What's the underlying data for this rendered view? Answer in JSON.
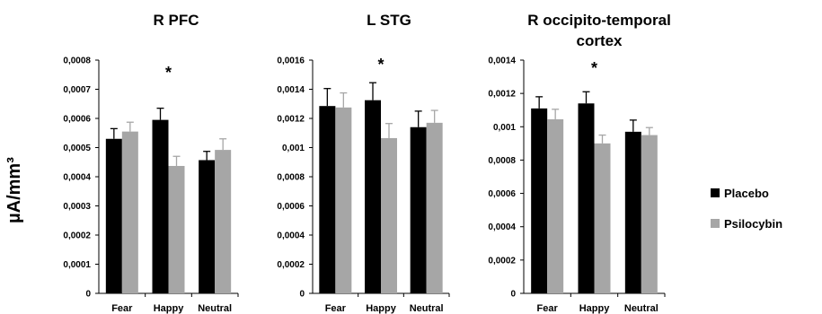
{
  "y_axis_label": "µA/mm³",
  "legend": [
    {
      "name": "Placebo",
      "color": "#000000"
    },
    {
      "name": "Psilocybin",
      "color": "#a6a6a6"
    }
  ],
  "chart_data": [
    {
      "type": "bar",
      "title": [
        "R PFC"
      ],
      "categories": [
        "Fear",
        "Happy",
        "Neutral"
      ],
      "ylim": [
        0,
        0.0008
      ],
      "yticks": [
        "0",
        "0,0001",
        "0,0002",
        "0,0003",
        "0,0004",
        "0,0005",
        "0,0006",
        "0,0007",
        "0,0008"
      ],
      "tick_step": 0.0001,
      "significance": [
        {
          "category": "Happy",
          "label": "*"
        }
      ],
      "series": [
        {
          "name": "Placebo",
          "values": [
            0.00053,
            0.000595,
            0.000457
          ],
          "errors": [
            3.5e-05,
            4e-05,
            3e-05
          ]
        },
        {
          "name": "Psilocybin",
          "values": [
            0.000555,
            0.000437,
            0.000492
          ],
          "errors": [
            3.2e-05,
            3.3e-05,
            3.8e-05
          ]
        }
      ]
    },
    {
      "type": "bar",
      "title": [
        "L STG"
      ],
      "categories": [
        "Fear",
        "Happy",
        "Neutral"
      ],
      "ylim": [
        0,
        0.0016
      ],
      "yticks": [
        "0",
        "0,0002",
        "0,0004",
        "0,0006",
        "0,0008",
        "0,001",
        "0,0012",
        "0,0014",
        "0,0016"
      ],
      "tick_step": 0.0002,
      "significance": [
        {
          "category": "Happy",
          "label": "*"
        }
      ],
      "series": [
        {
          "name": "Placebo",
          "values": [
            0.001285,
            0.001325,
            0.00114
          ],
          "errors": [
            0.00012,
            0.00012,
            0.00011
          ]
        },
        {
          "name": "Psilocybin",
          "values": [
            0.001275,
            0.001065,
            0.00117
          ],
          "errors": [
            0.0001,
            0.0001,
            8.5e-05
          ]
        }
      ]
    },
    {
      "type": "bar",
      "title": [
        "R occipito-temporal",
        "cortex"
      ],
      "categories": [
        "Fear",
        "Happy",
        "Neutral"
      ],
      "ylim": [
        0,
        0.0014
      ],
      "yticks": [
        "0",
        "0,0002",
        "0,0004",
        "0,0006",
        "0,0008",
        "0,001",
        "0,0012",
        "0,0014"
      ],
      "tick_step": 0.0002,
      "significance": [
        {
          "category": "Happy",
          "label": "*"
        }
      ],
      "series": [
        {
          "name": "Placebo",
          "values": [
            0.00111,
            0.00114,
            0.00097
          ],
          "errors": [
            7e-05,
            7e-05,
            7e-05
          ]
        },
        {
          "name": "Psilocybin",
          "values": [
            0.001045,
            0.0009,
            0.00095
          ],
          "errors": [
            6e-05,
            5e-05,
            4.5e-05
          ]
        }
      ]
    }
  ]
}
